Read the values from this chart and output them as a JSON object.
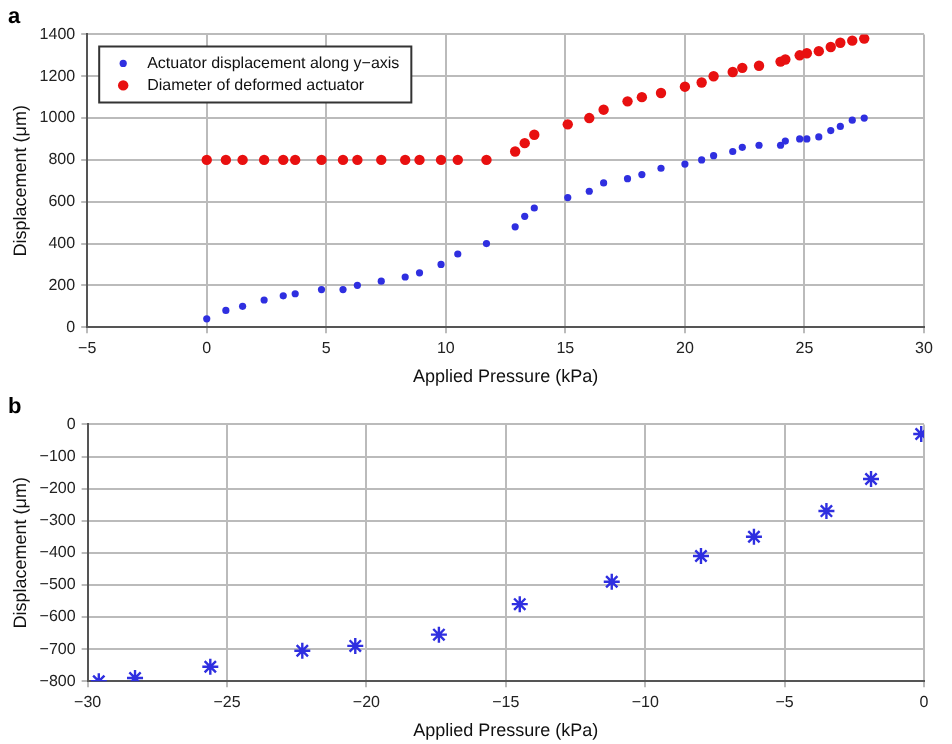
{
  "chart_data": [
    {
      "type": "scatter",
      "title": "a",
      "xlabel": "Applied Pressure (kPa)",
      "ylabel": "Displacement (μm)",
      "xlim": [
        -5,
        30
      ],
      "xticks": [
        -5,
        0,
        5,
        10,
        15,
        20,
        25,
        30
      ],
      "ylim": [
        0,
        1400
      ],
      "yticks": [
        0,
        200,
        400,
        600,
        800,
        1000,
        1200,
        1400
      ],
      "grid": true,
      "legend": "top left",
      "marker": "circle",
      "series": [
        {
          "name": "Actuator displacement along y−axis",
          "color": "#2f2fe0",
          "x": [
            0,
            0.8,
            1.5,
            2.4,
            3.2,
            3.7,
            4.8,
            5.7,
            6.3,
            7.3,
            8.3,
            8.9,
            9.8,
            10.5,
            11.7,
            12.9,
            13.3,
            13.7,
            15.1,
            16,
            16.6,
            17.6,
            18.2,
            19,
            20,
            20.7,
            21.2,
            22,
            22.4,
            23.1,
            24,
            24.2,
            24.8,
            25.1,
            25.6,
            26.1,
            26.5,
            27,
            27.5
          ],
          "values": [
            40,
            80,
            100,
            130,
            150,
            160,
            180,
            180,
            200,
            220,
            240,
            260,
            300,
            350,
            400,
            480,
            530,
            570,
            620,
            650,
            690,
            710,
            730,
            760,
            780,
            800,
            820,
            840,
            860,
            870,
            870,
            890,
            900,
            900,
            910,
            940,
            960,
            990,
            1000
          ]
        },
        {
          "name": "Diameter of deformed actuator",
          "color": "#e81010",
          "x": [
            0,
            0.8,
            1.5,
            2.4,
            3.2,
            3.7,
            4.8,
            5.7,
            6.3,
            7.3,
            8.3,
            8.9,
            9.8,
            10.5,
            11.7,
            12.9,
            13.3,
            13.7,
            15.1,
            16,
            16.6,
            17.6,
            18.2,
            19,
            20,
            20.7,
            21.2,
            22,
            22.4,
            23.1,
            24,
            24.2,
            24.8,
            25.1,
            25.6,
            26.1,
            26.5,
            27,
            27.5
          ],
          "values": [
            800,
            800,
            800,
            800,
            800,
            800,
            800,
            800,
            800,
            800,
            800,
            800,
            800,
            800,
            800,
            840,
            880,
            920,
            970,
            1000,
            1040,
            1080,
            1100,
            1120,
            1150,
            1170,
            1200,
            1220,
            1240,
            1250,
            1270,
            1280,
            1300,
            1310,
            1320,
            1340,
            1360,
            1370,
            1380
          ]
        }
      ]
    },
    {
      "type": "scatter",
      "title": "b",
      "xlabel": "Applied Pressure (kPa)",
      "ylabel": "Displacement (μm)",
      "xlim": [
        -30,
        0
      ],
      "xticks": [
        -30,
        -25,
        -20,
        -15,
        -10,
        -5,
        0
      ],
      "ylim": [
        -800,
        0
      ],
      "yticks": [
        -800,
        -700,
        -600,
        -500,
        -400,
        -300,
        -200,
        -100,
        0
      ],
      "grid": true,
      "marker": "cross",
      "series": [
        {
          "color": "#2f2fe0",
          "x": [
            -29.6,
            -28.3,
            -25.6,
            -22.3,
            -20.4,
            -17.4,
            -14.5,
            -11.2,
            -8,
            -6.1,
            -3.5,
            -1.9,
            -0.1
          ],
          "values": [
            -800,
            -790,
            -755,
            -705,
            -690,
            -655,
            -560,
            -490,
            -410,
            -350,
            -270,
            -170,
            -30
          ]
        }
      ]
    }
  ]
}
